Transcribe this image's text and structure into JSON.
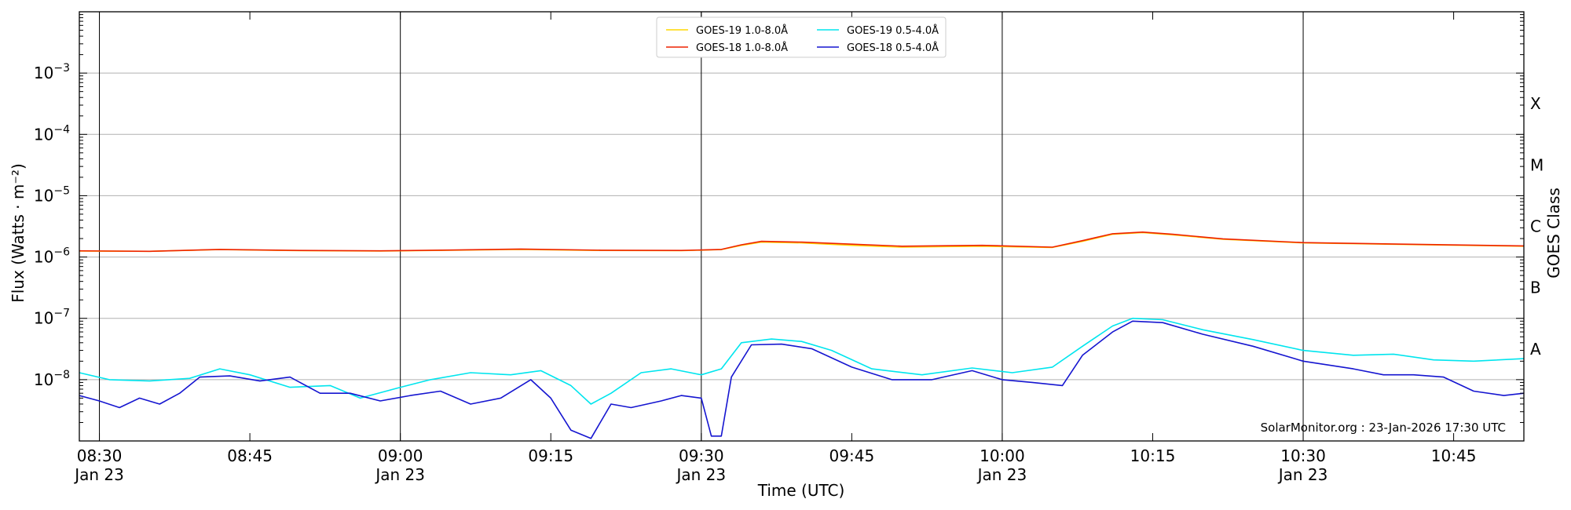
{
  "chart_data": {
    "type": "line",
    "xlabel": "Time (UTC)",
    "ylabel": "Flux (Watts · m⁻²)",
    "y2label": "GOES Class",
    "yscale": "log",
    "ylim": [
      1e-09,
      0.01
    ],
    "xlim": [
      "2026-01-23T08:28:00",
      "2026-01-23T10:52:00"
    ],
    "grid": "horizontal",
    "legend_position": "top-center",
    "y_ticks": [
      {
        "value": 0.001,
        "base": "10",
        "exp": "−3"
      },
      {
        "value": 0.0001,
        "base": "10",
        "exp": "−4"
      },
      {
        "value": 1e-05,
        "base": "10",
        "exp": "−5"
      },
      {
        "value": 1e-06,
        "base": "10",
        "exp": "−6"
      },
      {
        "value": 1e-07,
        "base": "10",
        "exp": "−7"
      },
      {
        "value": 1e-08,
        "base": "10",
        "exp": "−8"
      }
    ],
    "x_ticks": [
      {
        "time": "2026-01-23T08:30:00",
        "label": "08:30",
        "sub": "Jan 23",
        "major": true
      },
      {
        "time": "2026-01-23T08:45:00",
        "label": "08:45",
        "sub": "",
        "major": false
      },
      {
        "time": "2026-01-23T09:00:00",
        "label": "09:00",
        "sub": "Jan 23",
        "major": true
      },
      {
        "time": "2026-01-23T09:15:00",
        "label": "09:15",
        "sub": "",
        "major": false
      },
      {
        "time": "2026-01-23T09:30:00",
        "label": "09:30",
        "sub": "Jan 23",
        "major": true
      },
      {
        "time": "2026-01-23T09:45:00",
        "label": "09:45",
        "sub": "",
        "major": false
      },
      {
        "time": "2026-01-23T10:00:00",
        "label": "10:00",
        "sub": "Jan 23",
        "major": true
      },
      {
        "time": "2026-01-23T10:15:00",
        "label": "10:15",
        "sub": "",
        "major": false
      },
      {
        "time": "2026-01-23T10:30:00",
        "label": "10:30",
        "sub": "Jan 23",
        "major": true
      },
      {
        "time": "2026-01-23T10:45:00",
        "label": "10:45",
        "sub": "",
        "major": false
      }
    ],
    "classes": [
      {
        "label": "X",
        "value": 0.000316
      },
      {
        "label": "M",
        "value": 3.16e-05
      },
      {
        "label": "C",
        "value": 3.16e-06
      },
      {
        "label": "B",
        "value": 3.16e-07
      },
      {
        "label": "A",
        "value": 3.16e-08
      }
    ],
    "credit": "SolarMonitor.org : 23-Jan-2026 17:30 UTC",
    "series": [
      {
        "name": "GOES-19 1.0-8.0Å",
        "color": "#ffd700",
        "x": [
          "2026-01-23T08:28:00",
          "2026-01-23T08:35:00",
          "2026-01-23T08:42:00",
          "2026-01-23T08:50:00",
          "2026-01-23T08:58:00",
          "2026-01-23T09:05:00",
          "2026-01-23T09:12:00",
          "2026-01-23T09:20:00",
          "2026-01-23T09:28:00",
          "2026-01-23T09:32:00",
          "2026-01-23T09:34:00",
          "2026-01-23T09:36:00",
          "2026-01-23T09:40:00",
          "2026-01-23T09:45:00",
          "2026-01-23T09:50:00",
          "2026-01-23T09:58:00",
          "2026-01-23T10:05:00",
          "2026-01-23T10:08:00",
          "2026-01-23T10:11:00",
          "2026-01-23T10:14:00",
          "2026-01-23T10:17:00",
          "2026-01-23T10:22:00",
          "2026-01-23T10:30:00",
          "2026-01-23T10:40:00",
          "2026-01-23T10:52:00"
        ],
        "values": [
          1.25e-06,
          1.24e-06,
          1.32e-06,
          1.27e-06,
          1.25e-06,
          1.29e-06,
          1.33e-06,
          1.28e-06,
          1.27e-06,
          1.32e-06,
          1.55e-06,
          1.75e-06,
          1.7e-06,
          1.55e-06,
          1.45e-06,
          1.5e-06,
          1.43e-06,
          1.8e-06,
          2.35e-06,
          2.5e-06,
          2.3e-06,
          1.95e-06,
          1.7e-06,
          1.6e-06,
          1.5e-06
        ]
      },
      {
        "name": "GOES-18 1.0-8.0Å",
        "color": "#ee2200",
        "x": [
          "2026-01-23T08:28:00",
          "2026-01-23T08:35:00",
          "2026-01-23T08:42:00",
          "2026-01-23T08:50:00",
          "2026-01-23T08:58:00",
          "2026-01-23T09:05:00",
          "2026-01-23T09:12:00",
          "2026-01-23T09:20:00",
          "2026-01-23T09:28:00",
          "2026-01-23T09:32:00",
          "2026-01-23T09:34:00",
          "2026-01-23T09:36:00",
          "2026-01-23T09:40:00",
          "2026-01-23T09:45:00",
          "2026-01-23T09:50:00",
          "2026-01-23T09:58:00",
          "2026-01-23T10:05:00",
          "2026-01-23T10:08:00",
          "2026-01-23T10:11:00",
          "2026-01-23T10:14:00",
          "2026-01-23T10:17:00",
          "2026-01-23T10:22:00",
          "2026-01-23T10:30:00",
          "2026-01-23T10:40:00",
          "2026-01-23T10:52:00"
        ],
        "values": [
          1.26e-06,
          1.24e-06,
          1.33e-06,
          1.28e-06,
          1.26e-06,
          1.3e-06,
          1.35e-06,
          1.29e-06,
          1.28e-06,
          1.33e-06,
          1.58e-06,
          1.8e-06,
          1.75e-06,
          1.62e-06,
          1.5e-06,
          1.55e-06,
          1.45e-06,
          1.85e-06,
          2.4e-06,
          2.55e-06,
          2.35e-06,
          1.98e-06,
          1.72e-06,
          1.62e-06,
          1.52e-06
        ]
      },
      {
        "name": "GOES-19 0.5-4.0Å",
        "color": "#00e5ee",
        "x": [
          "2026-01-23T08:28:00",
          "2026-01-23T08:31:00",
          "2026-01-23T08:35:00",
          "2026-01-23T08:39:00",
          "2026-01-23T08:42:00",
          "2026-01-23T08:45:00",
          "2026-01-23T08:49:00",
          "2026-01-23T08:53:00",
          "2026-01-23T08:56:00",
          "2026-01-23T09:00:00",
          "2026-01-23T09:03:00",
          "2026-01-23T09:07:00",
          "2026-01-23T09:11:00",
          "2026-01-23T09:14:00",
          "2026-01-23T09:17:00",
          "2026-01-23T09:19:00",
          "2026-01-23T09:21:00",
          "2026-01-23T09:24:00",
          "2026-01-23T09:27:00",
          "2026-01-23T09:30:00",
          "2026-01-23T09:32:00",
          "2026-01-23T09:34:00",
          "2026-01-23T09:37:00",
          "2026-01-23T09:40:00",
          "2026-01-23T09:43:00",
          "2026-01-23T09:47:00",
          "2026-01-23T09:52:00",
          "2026-01-23T09:57:00",
          "2026-01-23T10:01:00",
          "2026-01-23T10:05:00",
          "2026-01-23T10:08:00",
          "2026-01-23T10:11:00",
          "2026-01-23T10:13:00",
          "2026-01-23T10:16:00",
          "2026-01-23T10:20:00",
          "2026-01-23T10:25:00",
          "2026-01-23T10:30:00",
          "2026-01-23T10:35:00",
          "2026-01-23T10:39:00",
          "2026-01-23T10:43:00",
          "2026-01-23T10:47:00",
          "2026-01-23T10:52:00"
        ],
        "values": [
          1.3e-08,
          1e-08,
          9.5e-09,
          1.05e-08,
          1.5e-08,
          1.2e-08,
          7.5e-09,
          8e-09,
          5e-09,
          7.5e-09,
          1e-08,
          1.3e-08,
          1.2e-08,
          1.4e-08,
          8e-09,
          4e-09,
          6e-09,
          1.3e-08,
          1.5e-08,
          1.2e-08,
          1.5e-08,
          4e-08,
          4.6e-08,
          4.2e-08,
          3e-08,
          1.5e-08,
          1.2e-08,
          1.55e-08,
          1.3e-08,
          1.6e-08,
          3.5e-08,
          7.5e-08,
          1e-07,
          9.5e-08,
          6.5e-08,
          4.5e-08,
          3e-08,
          2.5e-08,
          2.6e-08,
          2.1e-08,
          2e-08,
          2.2e-08
        ]
      },
      {
        "name": "GOES-18 0.5-4.0Å",
        "color": "#1515d0",
        "x": [
          "2026-01-23T08:28:00",
          "2026-01-23T08:30:00",
          "2026-01-23T08:32:00",
          "2026-01-23T08:34:00",
          "2026-01-23T08:36:00",
          "2026-01-23T08:38:00",
          "2026-01-23T08:40:00",
          "2026-01-23T08:43:00",
          "2026-01-23T08:46:00",
          "2026-01-23T08:49:00",
          "2026-01-23T08:52:00",
          "2026-01-23T08:55:00",
          "2026-01-23T08:58:00",
          "2026-01-23T09:01:00",
          "2026-01-23T09:04:00",
          "2026-01-23T09:07:00",
          "2026-01-23T09:10:00",
          "2026-01-23T09:13:00",
          "2026-01-23T09:15:00",
          "2026-01-23T09:17:00",
          "2026-01-23T09:19:00",
          "2026-01-23T09:21:00",
          "2026-01-23T09:23:00",
          "2026-01-23T09:26:00",
          "2026-01-23T09:28:00",
          "2026-01-23T09:30:00",
          "2026-01-23T09:31:00",
          "2026-01-23T09:32:00",
          "2026-01-23T09:33:00",
          "2026-01-23T09:35:00",
          "2026-01-23T09:38:00",
          "2026-01-23T09:41:00",
          "2026-01-23T09:45:00",
          "2026-01-23T09:49:00",
          "2026-01-23T09:53:00",
          "2026-01-23T09:57:00",
          "2026-01-23T10:00:00",
          "2026-01-23T10:03:00",
          "2026-01-23T10:06:00",
          "2026-01-23T10:08:00",
          "2026-01-23T10:11:00",
          "2026-01-23T10:13:00",
          "2026-01-23T10:16:00",
          "2026-01-23T10:20:00",
          "2026-01-23T10:25:00",
          "2026-01-23T10:30:00",
          "2026-01-23T10:35:00",
          "2026-01-23T10:38:00",
          "2026-01-23T10:41:00",
          "2026-01-23T10:44:00",
          "2026-01-23T10:47:00",
          "2026-01-23T10:50:00",
          "2026-01-23T10:52:00"
        ],
        "values": [
          5.5e-09,
          4.5e-09,
          3.5e-09,
          5e-09,
          4e-09,
          6e-09,
          1.1e-08,
          1.15e-08,
          9.5e-09,
          1.1e-08,
          6e-09,
          6e-09,
          4.5e-09,
          5.5e-09,
          6.5e-09,
          4e-09,
          5e-09,
          1e-08,
          5e-09,
          1.5e-09,
          1.1e-09,
          4e-09,
          3.5e-09,
          4.5e-09,
          5.5e-09,
          5e-09,
          1.2e-09,
          1.2e-09,
          1.1e-08,
          3.7e-08,
          3.8e-08,
          3.2e-08,
          1.6e-08,
          1e-08,
          1e-08,
          1.4e-08,
          1e-08,
          9e-09,
          8e-09,
          2.5e-08,
          6e-08,
          9e-08,
          8.5e-08,
          5.5e-08,
          3.5e-08,
          2e-08,
          1.5e-08,
          1.2e-08,
          1.2e-08,
          1.1e-08,
          6.5e-09,
          5.5e-09,
          6e-09
        ]
      }
    ]
  }
}
